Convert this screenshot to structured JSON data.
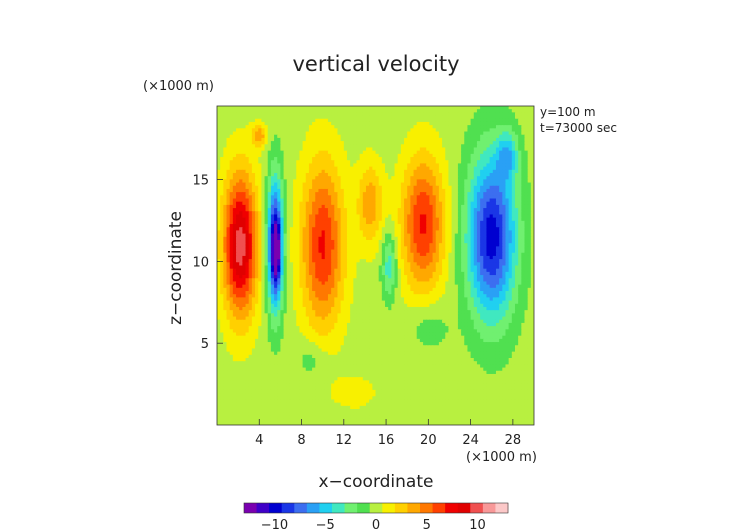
{
  "chart_data": {
    "type": "heatmap",
    "title": "vertical velocity",
    "xlabel": "x−coordinate",
    "ylabel": "z−coordinate",
    "x_unit": "(×1000 m)",
    "y_unit": "(×1000 m)",
    "annotations": [
      "y=100 m",
      "t=73000 sec"
    ],
    "xlim": [
      0,
      30
    ],
    "ylim": [
      0,
      19.5
    ],
    "x_ticks": [
      4,
      8,
      12,
      16,
      20,
      24,
      28
    ],
    "x_tick_labels": [
      "4",
      "8",
      "12",
      "16",
      "20",
      "24",
      "28"
    ],
    "y_ticks": [
      5,
      10,
      15
    ],
    "y_tick_labels": [
      "5",
      "10",
      "15"
    ],
    "colorbar": {
      "min": -13,
      "max": 13,
      "ticks": [
        -10,
        -5,
        0,
        5,
        10
      ],
      "tick_labels": [
        "−10",
        "−5",
        "0",
        "5",
        "10"
      ],
      "colors": [
        "#7a00b0",
        "#4000c8",
        "#0000d0",
        "#1a36e6",
        "#3c6ef0",
        "#2aa0f5",
        "#20d0f0",
        "#40e8c0",
        "#70f070",
        "#50e050",
        "#b8f040",
        "#f8f000",
        "#ffd000",
        "#ffa800",
        "#ff7800",
        "#ff4000",
        "#f00000",
        "#e00000",
        "#f05050",
        "#f89898",
        "#fcc8c8"
      ]
    },
    "features": [
      {
        "x": 2.2,
        "z": 11.0,
        "sx": 1.6,
        "sz": 4.3,
        "value": 10
      },
      {
        "x": 5.5,
        "z": 11.0,
        "sx": 0.75,
        "sz": 4.0,
        "value": -11
      },
      {
        "x": 5.6,
        "z": 10.6,
        "sx": 0.35,
        "sz": 1.6,
        "value": -6
      },
      {
        "x": 10.0,
        "z": 11.0,
        "sx": 2.0,
        "sz": 5.0,
        "value": 7
      },
      {
        "x": 14.5,
        "z": 13.5,
        "sx": 1.2,
        "sz": 2.5,
        "value": 4
      },
      {
        "x": 19.5,
        "z": 12.3,
        "sx": 2.0,
        "sz": 4.0,
        "value": 7
      },
      {
        "x": 16.3,
        "z": 9.7,
        "sx": 0.7,
        "sz": 2.0,
        "value": -4
      },
      {
        "x": 26.0,
        "z": 11.5,
        "sx": 2.3,
        "sz": 5.0,
        "value": -10
      },
      {
        "x": 27.5,
        "z": 16.5,
        "sx": 1.0,
        "sz": 1.5,
        "value": -4
      },
      {
        "x": 9.0,
        "z": 4.0,
        "sx": 1.5,
        "sz": 1.2,
        "value": -1.5
      },
      {
        "x": 20.0,
        "z": 6.0,
        "sx": 2.0,
        "sz": 1.5,
        "value": -1.5
      },
      {
        "x": 4.0,
        "z": 17.7,
        "sx": 0.7,
        "sz": 0.7,
        "value": 4
      },
      {
        "x": 13.0,
        "z": 2.0,
        "sx": 2.0,
        "sz": 1.0,
        "value": 1.5
      }
    ]
  }
}
